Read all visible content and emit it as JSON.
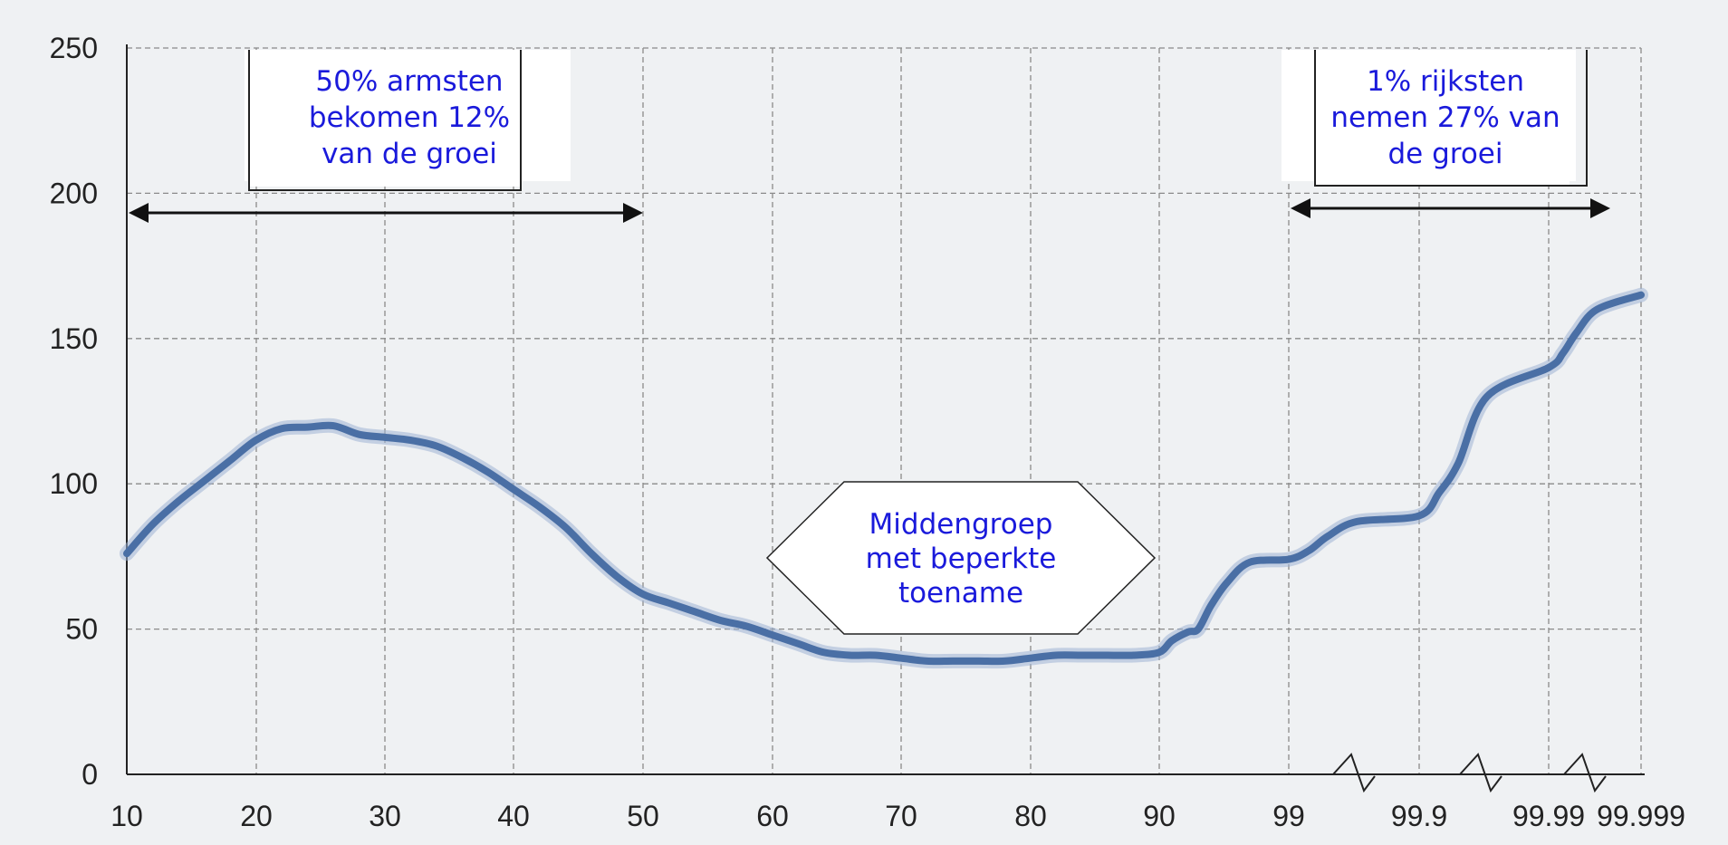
{
  "chart_data": {
    "type": "line",
    "title": "",
    "xlabel": "",
    "ylabel": "",
    "x_scale": "percentile (broken axis, compressed above 99)",
    "xticks": [
      "10",
      "20",
      "30",
      "40",
      "50",
      "60",
      "70",
      "80",
      "90",
      "99",
      "99.9",
      "99.99",
      "99.999"
    ],
    "yticks": [
      "0",
      "50",
      "100",
      "150",
      "200",
      "250"
    ],
    "ylim": [
      0,
      250
    ],
    "grid": true,
    "series": [
      {
        "color": "#4a6fa5",
        "x": [
          "10",
          "12",
          "14",
          "16",
          "18",
          "20",
          "22",
          "24",
          "26",
          "28",
          "30",
          "32",
          "34",
          "36",
          "38",
          "40",
          "42",
          "44",
          "46",
          "48",
          "50",
          "52",
          "54",
          "56",
          "58",
          "60",
          "62",
          "64",
          "66",
          "68",
          "70",
          "72",
          "74",
          "76",
          "78",
          "80",
          "82",
          "84",
          "86",
          "88",
          "90",
          "92",
          "94",
          "95",
          "96",
          "97",
          "98",
          "99",
          "99.3",
          "99.5",
          "99.7",
          "99.9",
          "99.93",
          "99.95",
          "99.97",
          "99.99",
          "99.993",
          "99.995",
          "99.997",
          "99.999"
        ],
        "y": [
          76,
          86,
          94,
          101,
          108,
          115,
          119,
          119.5,
          120,
          117,
          116,
          115,
          113,
          109,
          104,
          98,
          92,
          85,
          76,
          68,
          62,
          59,
          56,
          53,
          51,
          48,
          45,
          42,
          41,
          41,
          40,
          39,
          39,
          39,
          39,
          40,
          41,
          41,
          41,
          41,
          42,
          46,
          49,
          50,
          58,
          66,
          73,
          74,
          77,
          82,
          87,
          89,
          97,
          107,
          130,
          140,
          145,
          152,
          160,
          165
        ]
      }
    ],
    "series_x_numeric": [
      10,
      12,
      14,
      16,
      18,
      20,
      22,
      24,
      26,
      28,
      30,
      32,
      34,
      36,
      38,
      40,
      42,
      44,
      46,
      48,
      50,
      52,
      54,
      56,
      58,
      60,
      62,
      64,
      66,
      68,
      70,
      72,
      74,
      76,
      78,
      80,
      82,
      84,
      86,
      88,
      90,
      92,
      94,
      95,
      96,
      97,
      98,
      99,
      99.3,
      99.5,
      99.7,
      99.9,
      99.93,
      99.95,
      99.97,
      99.99,
      99.993,
      99.995,
      99.997,
      99.999
    ],
    "annotations": {
      "left": {
        "lines": [
          "50% armsten",
          "bekomen 12%",
          "van de groei"
        ]
      },
      "middle": {
        "lines": [
          "Middengroep",
          "met beperkte",
          "toename"
        ]
      },
      "right": {
        "lines": [
          "1% rijksten",
          "nemen 27% van",
          "de groei"
        ]
      }
    },
    "colors": {
      "line": "#4a6fa5",
      "annotation_text": "#1a1adb",
      "background": "#eff1f3"
    }
  }
}
